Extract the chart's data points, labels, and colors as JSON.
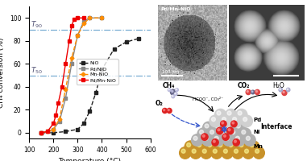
{
  "xlabel": "Temperature (°C)",
  "ylabel": "CH₄ conversion (%)",
  "xlim": [
    100,
    600
  ],
  "ylim": [
    -5,
    110
  ],
  "xticks": [
    100,
    200,
    300,
    400,
    500,
    600
  ],
  "yticks": [
    0,
    20,
    40,
    60,
    80,
    100
  ],
  "T90_y": 90,
  "T50_y": 50,
  "hline_color": "#7BAFD4",
  "hline_style": "-.",
  "series": [
    {
      "label": "NiO",
      "color": "#222222",
      "linestyle": "--",
      "marker": "s",
      "x": [
        150,
        200,
        250,
        300,
        325,
        350,
        375,
        400,
        450,
        500,
        550
      ],
      "y": [
        0,
        0,
        1,
        3,
        8,
        19,
        35,
        55,
        73,
        79,
        82
      ]
    },
    {
      "label": "Pd/NiO",
      "color": "#888888",
      "linestyle": "-",
      "marker": "s",
      "x": [
        150,
        175,
        200,
        225,
        250,
        275,
        300,
        325,
        350,
        400
      ],
      "y": [
        0,
        1,
        3,
        10,
        30,
        60,
        85,
        97,
        100,
        100
      ]
    },
    {
      "label": "Mn-NiO",
      "color": "#FF8C00",
      "linestyle": "--",
      "marker": "D",
      "x": [
        150,
        175,
        200,
        225,
        250,
        275,
        300,
        325,
        350,
        400
      ],
      "y": [
        0,
        1,
        3,
        12,
        38,
        65,
        85,
        95,
        100,
        100
      ]
    },
    {
      "label": "Pd/Mn-NiO",
      "color": "#EE0000",
      "linestyle": "-",
      "marker": "s",
      "x": [
        150,
        175,
        200,
        210,
        220,
        235,
        250,
        265,
        275,
        285,
        300,
        325
      ],
      "y": [
        0,
        1,
        8,
        15,
        26,
        40,
        60,
        80,
        93,
        99,
        100,
        100
      ]
    }
  ],
  "figsize": [
    3.81,
    2.0
  ],
  "dpi": 100
}
